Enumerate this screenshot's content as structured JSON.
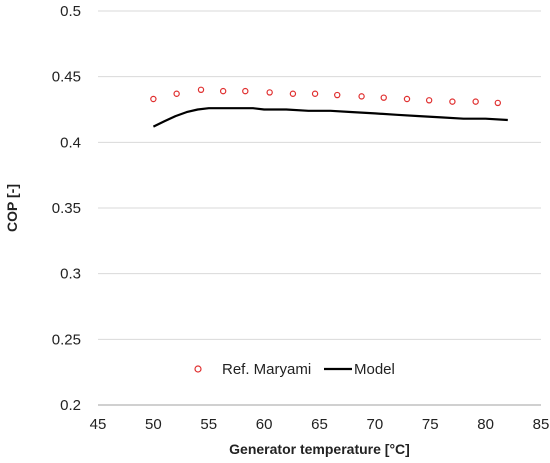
{
  "chart_data": {
    "type": "line",
    "title": "",
    "xlabel": "Generator temperature [°C]",
    "ylabel": "COP [-]",
    "xlim": [
      45,
      85
    ],
    "ylim": [
      0.2,
      0.5
    ],
    "x_ticks": [
      45,
      50,
      55,
      60,
      65,
      70,
      75,
      80,
      85
    ],
    "x_tick_labels": [
      "45",
      "50",
      "55",
      "60",
      "65",
      "70",
      "75",
      "80",
      "85"
    ],
    "y_ticks": [
      0.2,
      0.25,
      0.3,
      0.35,
      0.4,
      0.45,
      0.5
    ],
    "y_tick_labels": [
      "0.2",
      "0.25",
      "0.3",
      "0.35",
      "0.4",
      "0.45",
      "0.5"
    ],
    "grid": "horizontal",
    "legend_placement": "bottom-center",
    "series": [
      {
        "name": "Ref. Maryami",
        "style": "markers",
        "marker": "open-circle",
        "color": "#e03030",
        "x": [
          50,
          52.1,
          54.3,
          56.3,
          58.3,
          60.5,
          62.6,
          64.6,
          66.6,
          68.8,
          70.8,
          72.9,
          74.9,
          77.0,
          79.1,
          81.1
        ],
        "y": [
          0.433,
          0.437,
          0.44,
          0.439,
          0.439,
          0.438,
          0.437,
          0.437,
          0.436,
          0.435,
          0.434,
          0.433,
          0.432,
          0.431,
          0.431,
          0.43
        ]
      },
      {
        "name": "Model",
        "style": "line",
        "color": "#000000",
        "x": [
          50,
          51,
          52,
          53,
          54,
          55,
          56,
          57,
          58,
          59,
          60,
          62,
          64,
          66,
          68,
          70,
          72,
          74,
          76,
          78,
          80,
          82
        ],
        "y": [
          0.412,
          0.416,
          0.42,
          0.423,
          0.425,
          0.426,
          0.426,
          0.426,
          0.426,
          0.426,
          0.425,
          0.425,
          0.424,
          0.424,
          0.423,
          0.422,
          0.421,
          0.42,
          0.419,
          0.418,
          0.418,
          0.417
        ]
      }
    ]
  }
}
